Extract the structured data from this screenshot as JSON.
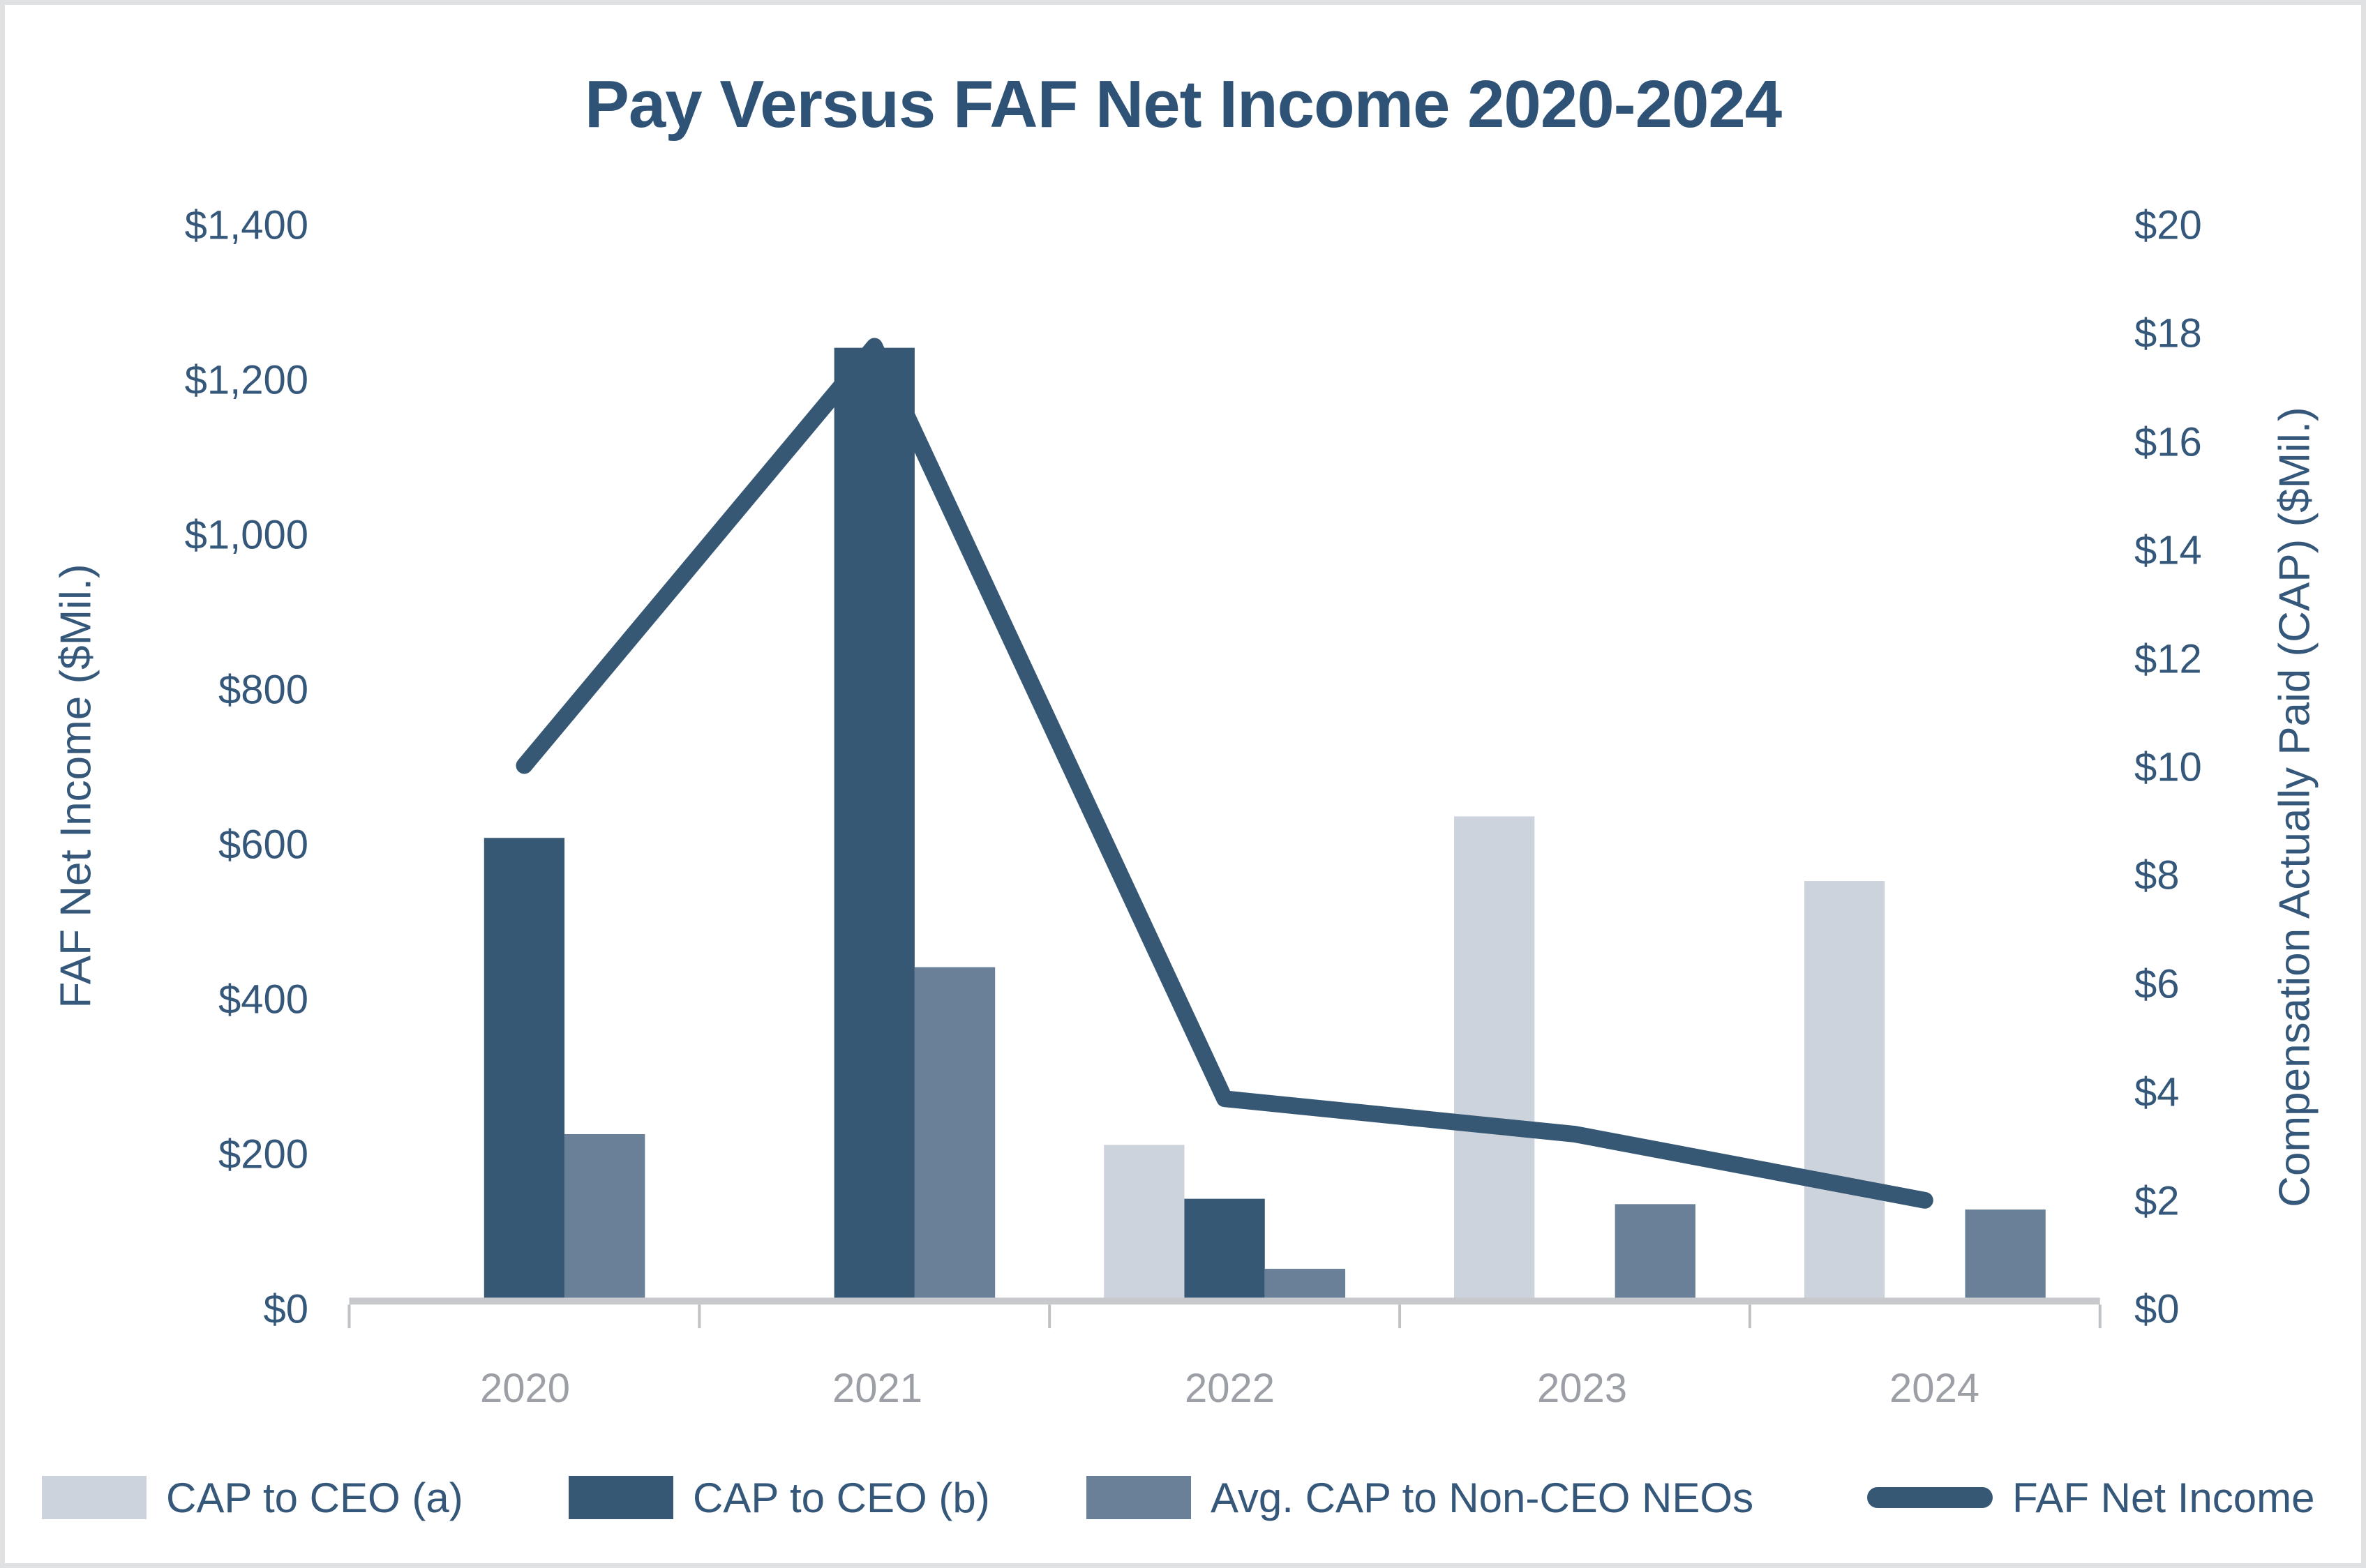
{
  "title": "Pay Versus FAF Net Income 2020-2024",
  "left_axis": {
    "title": "FAF Net Income ($Mil.)",
    "min": 0,
    "max": 1400,
    "step": 200,
    "tick_labels": [
      "$0",
      "$200",
      "$400",
      "$600",
      "$800",
      "$1,000",
      "$1,200",
      "$1,400"
    ]
  },
  "right_axis": {
    "title": "Compensation Actually Paid (CAP) ($Mil.)",
    "min": 0,
    "max": 20,
    "step": 2,
    "tick_labels": [
      "$0",
      "$2",
      "$4",
      "$6",
      "$8",
      "$10",
      "$12",
      "$14",
      "$16",
      "$18",
      "$20"
    ]
  },
  "colors": {
    "dark": "#365874",
    "slate": "#6A8099",
    "light": "#CDD3DC",
    "axis_line": "#C7C9CC",
    "tick_stub": "#BFC2C5",
    "year_label": "#9CA0A6",
    "text": "#35587A",
    "border": "#E0E1E3"
  },
  "chart_data": {
    "type": "combo-bar-line",
    "categories": [
      "2020",
      "2021",
      "2022",
      "2023",
      "2024"
    ],
    "series": [
      {
        "name": "CAP to CEO (a)",
        "type": "bar",
        "axis": "right",
        "color": "#CDD3DC",
        "values": [
          null,
          null,
          2.9,
          9.0,
          7.8
        ]
      },
      {
        "name": "CAP to CEO (b)",
        "type": "bar",
        "axis": "right",
        "color": "#365874",
        "values": [
          8.6,
          17.7,
          1.9,
          null,
          null
        ]
      },
      {
        "name": "Avg. CAP to Non-CEO NEOs",
        "type": "bar",
        "axis": "right",
        "color": "#6A8099",
        "values": [
          3.1,
          6.2,
          0.6,
          1.8,
          1.7
        ]
      },
      {
        "name": "FAF Net Income",
        "type": "line",
        "axis": "left",
        "color": "#365874",
        "values": [
          696,
          1241,
          263,
          217,
          131
        ]
      }
    ],
    "title": "Pay Versus FAF Net Income 2020-2024",
    "left_ylabel": "FAF Net Income ($Mil.)",
    "right_ylabel": "Compensation Actually Paid (CAP) ($Mil.)",
    "left_ylim": [
      0,
      1400
    ],
    "right_ylim": [
      0,
      20
    ],
    "grid": false,
    "legend_position": "bottom"
  },
  "legend": [
    {
      "label": "CAP to CEO (a)",
      "swatch": "bar",
      "color": "#CDD3DC"
    },
    {
      "label": "CAP to CEO (b)",
      "swatch": "bar",
      "color": "#365874"
    },
    {
      "label": "Avg. CAP to Non-CEO NEOs",
      "swatch": "bar",
      "color": "#6A8099"
    },
    {
      "label": "FAF Net Income",
      "swatch": "line",
      "color": "#365874"
    }
  ]
}
